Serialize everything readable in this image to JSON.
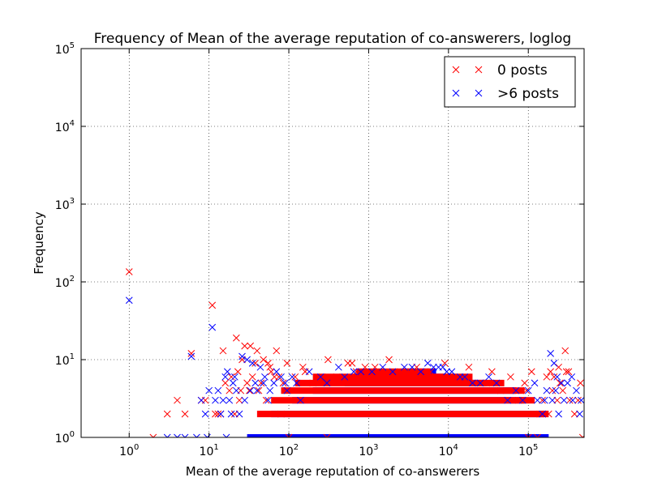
{
  "chart_data": {
    "type": "scatter",
    "title": "Frequency of Mean of the average reputation of co-answerers, loglog",
    "xlabel": "Mean of the average reputation of co-answerers",
    "ylabel": "Frequency",
    "xscale": "log",
    "yscale": "log",
    "xlim": [
      0.25,
      500000
    ],
    "ylim": [
      1,
      100000
    ],
    "grid": true,
    "legend_position": "top-right",
    "x_ticks": [
      {
        "value": 1,
        "base": "10",
        "exp": "0"
      },
      {
        "value": 10,
        "base": "10",
        "exp": "1"
      },
      {
        "value": 100,
        "base": "10",
        "exp": "2"
      },
      {
        "value": 1000,
        "base": "10",
        "exp": "3"
      },
      {
        "value": 10000,
        "base": "10",
        "exp": "4"
      },
      {
        "value": 100000,
        "base": "10",
        "exp": "5"
      }
    ],
    "y_ticks": [
      {
        "value": 1,
        "base": "10",
        "exp": "0"
      },
      {
        "value": 10,
        "base": "10",
        "exp": "1"
      },
      {
        "value": 100,
        "base": "10",
        "exp": "2"
      },
      {
        "value": 1000,
        "base": "10",
        "exp": "3"
      },
      {
        "value": 10000,
        "base": "10",
        "exp": "4"
      },
      {
        "value": 100000,
        "base": "10",
        "exp": "5"
      }
    ],
    "series": [
      {
        "name": "0 posts",
        "color": "#ff0000",
        "marker": "x",
        "points": [
          [
            1,
            135
          ],
          [
            11,
            50
          ],
          [
            6,
            12
          ],
          [
            22,
            19
          ],
          [
            15,
            13
          ],
          [
            28,
            15
          ],
          [
            33,
            15
          ],
          [
            26,
            10
          ],
          [
            40,
            13
          ],
          [
            70,
            13
          ],
          [
            38,
            9
          ],
          [
            48,
            10
          ],
          [
            55,
            9
          ],
          [
            60,
            7
          ],
          [
            95,
            9
          ],
          [
            150,
            8
          ],
          [
            310,
            10
          ],
          [
            550,
            9
          ],
          [
            620,
            9
          ],
          [
            1800,
            10
          ],
          [
            9000,
            9
          ],
          [
            18000,
            8
          ],
          [
            35000,
            7
          ],
          [
            60000,
            6
          ],
          [
            110000,
            7
          ],
          [
            170000,
            6
          ],
          [
            190000,
            7
          ],
          [
            210000,
            6
          ],
          [
            240000,
            8
          ],
          [
            290000,
            13
          ],
          [
            320000,
            7
          ],
          [
            450000,
            5
          ],
          [
            19,
            6
          ],
          [
            25,
            4
          ],
          [
            32,
            4
          ],
          [
            45,
            5
          ],
          [
            52,
            3
          ],
          [
            66,
            6
          ],
          [
            85,
            5
          ],
          [
            120,
            6
          ],
          [
            200,
            5
          ],
          [
            18,
            4
          ],
          [
            24,
            3
          ],
          [
            30,
            5
          ],
          [
            4,
            3
          ],
          [
            8,
            3
          ],
          [
            9,
            3
          ],
          [
            12,
            2
          ],
          [
            3,
            2
          ],
          [
            5,
            2
          ],
          [
            13,
            2
          ],
          [
            14,
            2
          ],
          [
            2,
            1
          ],
          [
            100,
            1
          ],
          [
            300,
            1
          ],
          [
            100000,
            1
          ],
          [
            130000,
            1
          ],
          [
            140000,
            2
          ],
          [
            180000,
            2
          ],
          [
            230000,
            3
          ],
          [
            270000,
            4
          ],
          [
            330000,
            3
          ],
          [
            380000,
            2
          ],
          [
            420000,
            3
          ],
          [
            480000,
            1
          ],
          [
            250000,
            5
          ],
          [
            300000,
            7
          ],
          [
            16,
            5
          ],
          [
            21,
            2
          ],
          [
            23,
            7
          ],
          [
            35,
            6
          ],
          [
            42,
            4
          ],
          [
            58,
            8
          ],
          [
            75,
            6
          ],
          [
            80,
            2
          ],
          [
            160,
            7
          ],
          [
            260,
            6
          ],
          [
            400,
            6
          ],
          [
            700,
            7
          ],
          [
            900,
            8
          ],
          [
            1200,
            8
          ],
          [
            2500,
            7
          ],
          [
            4000,
            8
          ],
          [
            6000,
            7
          ],
          [
            30000,
            5
          ],
          [
            45000,
            4
          ],
          [
            75000,
            3
          ],
          [
            90000,
            5
          ],
          [
            95000,
            4
          ],
          [
            150000,
            3
          ],
          [
            200000,
            4
          ]
        ]
      },
      {
        "name": ">6 posts",
        "color": "#0000ff",
        "marker": "x",
        "points": [
          [
            1,
            58
          ],
          [
            11,
            26
          ],
          [
            6,
            11
          ],
          [
            26,
            11
          ],
          [
            17,
            7
          ],
          [
            35,
            9
          ],
          [
            44,
            8
          ],
          [
            30,
            10
          ],
          [
            50,
            6
          ],
          [
            65,
            5
          ],
          [
            80,
            6
          ],
          [
            58,
            4
          ],
          [
            40,
            4
          ],
          [
            20,
            5
          ],
          [
            10,
            4
          ],
          [
            13,
            4
          ],
          [
            15,
            3
          ],
          [
            28,
            3
          ],
          [
            38,
            5
          ],
          [
            48,
            5
          ],
          [
            110,
            6
          ],
          [
            180,
            7
          ],
          [
            250,
            6
          ],
          [
            420,
            8
          ],
          [
            800,
            7
          ],
          [
            1500,
            8
          ],
          [
            2800,
            8
          ],
          [
            5500,
            9
          ],
          [
            7500,
            8
          ],
          [
            9500,
            7
          ],
          [
            14000,
            6
          ],
          [
            20000,
            5
          ],
          [
            40000,
            5
          ],
          [
            70000,
            4
          ],
          [
            100000,
            4
          ],
          [
            190000,
            12
          ],
          [
            210000,
            9
          ],
          [
            230000,
            6
          ],
          [
            260000,
            5
          ],
          [
            310000,
            5
          ],
          [
            350000,
            6
          ],
          [
            400000,
            4
          ],
          [
            460000,
            3
          ],
          [
            200000,
            3
          ],
          [
            220000,
            4
          ],
          [
            280000,
            3
          ],
          [
            160000,
            3
          ],
          [
            130000,
            3
          ],
          [
            150000,
            2
          ],
          [
            120000,
            5
          ],
          [
            170000,
            4
          ],
          [
            240000,
            2
          ],
          [
            360000,
            3
          ],
          [
            440000,
            2
          ],
          [
            8,
            3
          ],
          [
            9,
            2
          ],
          [
            14,
            2
          ],
          [
            12,
            3
          ],
          [
            16,
            6
          ],
          [
            22,
            4
          ],
          [
            24,
            2
          ],
          [
            18,
            3
          ],
          [
            4,
            1
          ],
          [
            7,
            1
          ],
          [
            5,
            1
          ],
          [
            3,
            1
          ],
          [
            9.5,
            1
          ],
          [
            16.5,
            1
          ],
          [
            19,
            2
          ],
          [
            21,
            6
          ],
          [
            33,
            4
          ],
          [
            55,
            3
          ],
          [
            70,
            7
          ],
          [
            90,
            5
          ],
          [
            95,
            4
          ],
          [
            125,
            5
          ],
          [
            140,
            3
          ],
          [
            300,
            5
          ],
          [
            500,
            6
          ],
          [
            650,
            7
          ],
          [
            1100,
            7
          ],
          [
            2000,
            7
          ],
          [
            3500,
            8
          ],
          [
            4500,
            7
          ],
          [
            6500,
            8
          ],
          [
            8500,
            8
          ],
          [
            11000,
            7
          ],
          [
            16000,
            6
          ],
          [
            25000,
            5
          ],
          [
            32000,
            6
          ],
          [
            55000,
            3
          ],
          [
            85000,
            3
          ]
        ]
      }
    ],
    "bands": [
      {
        "series": 1,
        "y": 1,
        "xmin": 30,
        "xmax": 180000
      },
      {
        "series": 1,
        "y": 2,
        "xmin": 60,
        "xmax": 150000
      },
      {
        "series": 1,
        "y": 3,
        "xmin": 110,
        "xmax": 90000
      },
      {
        "series": 1,
        "y": 4,
        "xmin": 200,
        "xmax": 70000
      },
      {
        "series": 1,
        "y": 5,
        "xmin": 500,
        "xmax": 30000
      },
      {
        "series": 1,
        "y": 6,
        "xmin": 1200,
        "xmax": 12000
      },
      {
        "series": 1,
        "y": 7,
        "xmin": 2500,
        "xmax": 7000
      },
      {
        "series": 0,
        "y": 2,
        "xmin": 40,
        "xmax": 180000
      },
      {
        "series": 0,
        "y": 3,
        "xmin": 60,
        "xmax": 120000
      },
      {
        "series": 0,
        "y": 4,
        "xmin": 80,
        "xmax": 90000
      },
      {
        "series": 0,
        "y": 5,
        "xmin": 120,
        "xmax": 50000
      },
      {
        "series": 0,
        "y": 6,
        "xmin": 200,
        "xmax": 20000
      },
      {
        "series": 0,
        "y": 7,
        "xmin": 700,
        "xmax": 6000
      }
    ]
  }
}
